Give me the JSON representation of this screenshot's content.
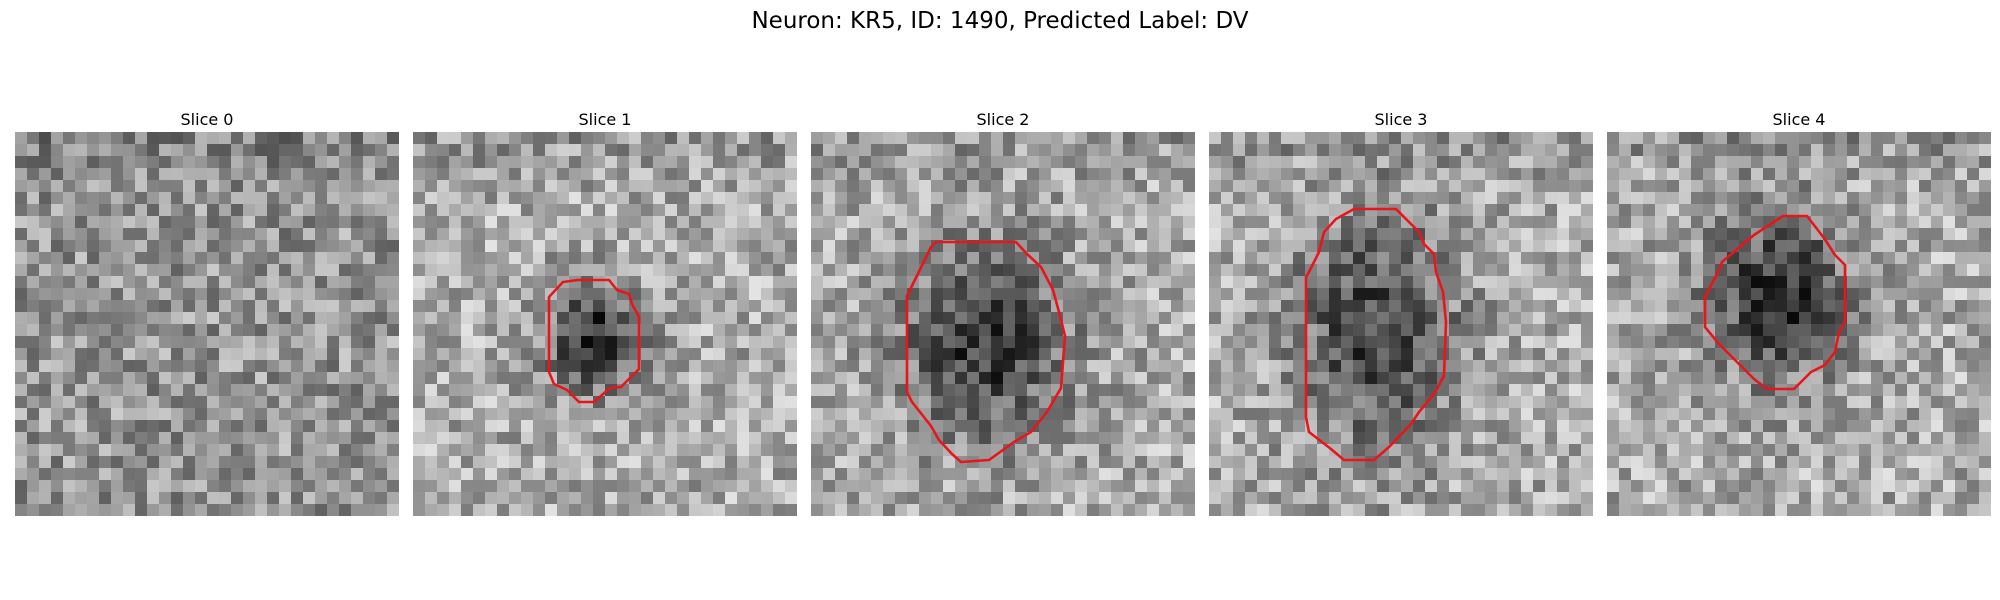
{
  "figure": {
    "title": "Neuron: KR5, ID: 1490, Predicted Label: DV"
  },
  "contour_color": "#e8151b",
  "slices": [
    {
      "title": "Slice 0",
      "has_contour": false
    },
    {
      "title": "Slice 1",
      "has_contour": true
    },
    {
      "title": "Slice 2",
      "has_contour": true
    },
    {
      "title": "Slice 3",
      "has_contour": true
    },
    {
      "title": "Slice 4",
      "has_contour": true
    }
  ]
}
